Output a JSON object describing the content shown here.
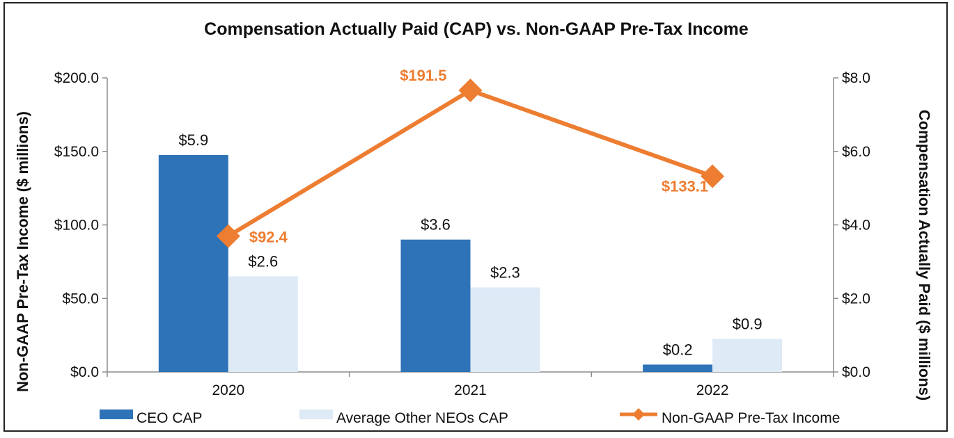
{
  "chart_data": {
    "type": "bar",
    "title": "Compensation Actually Paid (CAP) vs. Non-GAAP Pre-Tax Income",
    "categories": [
      "2020",
      "2021",
      "2022"
    ],
    "y_left": {
      "label": "Non-GAAP Pre-Tax Income ($ millions)",
      "lim": [
        0,
        200
      ],
      "ticks": [
        0,
        50,
        100,
        150,
        200
      ],
      "tick_labels": [
        "$0.0",
        "$50.0",
        "$100.0",
        "$150.0",
        "$200.0"
      ]
    },
    "y_right": {
      "label": "Compensation Actually Paid ($ millions)",
      "lim": [
        0,
        8
      ],
      "ticks": [
        0,
        2,
        4,
        6,
        8
      ],
      "tick_labels": [
        "$0.0",
        "$2.0",
        "$4.0",
        "$6.0",
        "$8.0"
      ]
    },
    "series": [
      {
        "name": "CEO CAP",
        "type": "bar",
        "axis": "right",
        "color": "#2e72b8",
        "values": [
          5.9,
          3.6,
          0.2
        ],
        "labels": [
          "$5.9",
          "$3.6",
          "$0.2"
        ]
      },
      {
        "name": "Average Other NEOs CAP",
        "type": "bar",
        "axis": "right",
        "color": "#deeaf6",
        "values": [
          2.6,
          2.3,
          0.9
        ],
        "labels": [
          "$2.6",
          "$2.3",
          "$0.9"
        ]
      },
      {
        "name": "Non-GAAP Pre-Tax Income",
        "type": "line",
        "axis": "left",
        "color": "#ed7d31",
        "marker": "diamond",
        "values": [
          92.4,
          191.5,
          133.1
        ],
        "labels": [
          "$92.4",
          "$191.5",
          "$133.1"
        ]
      }
    ],
    "legend_position": "bottom",
    "grid": false
  }
}
